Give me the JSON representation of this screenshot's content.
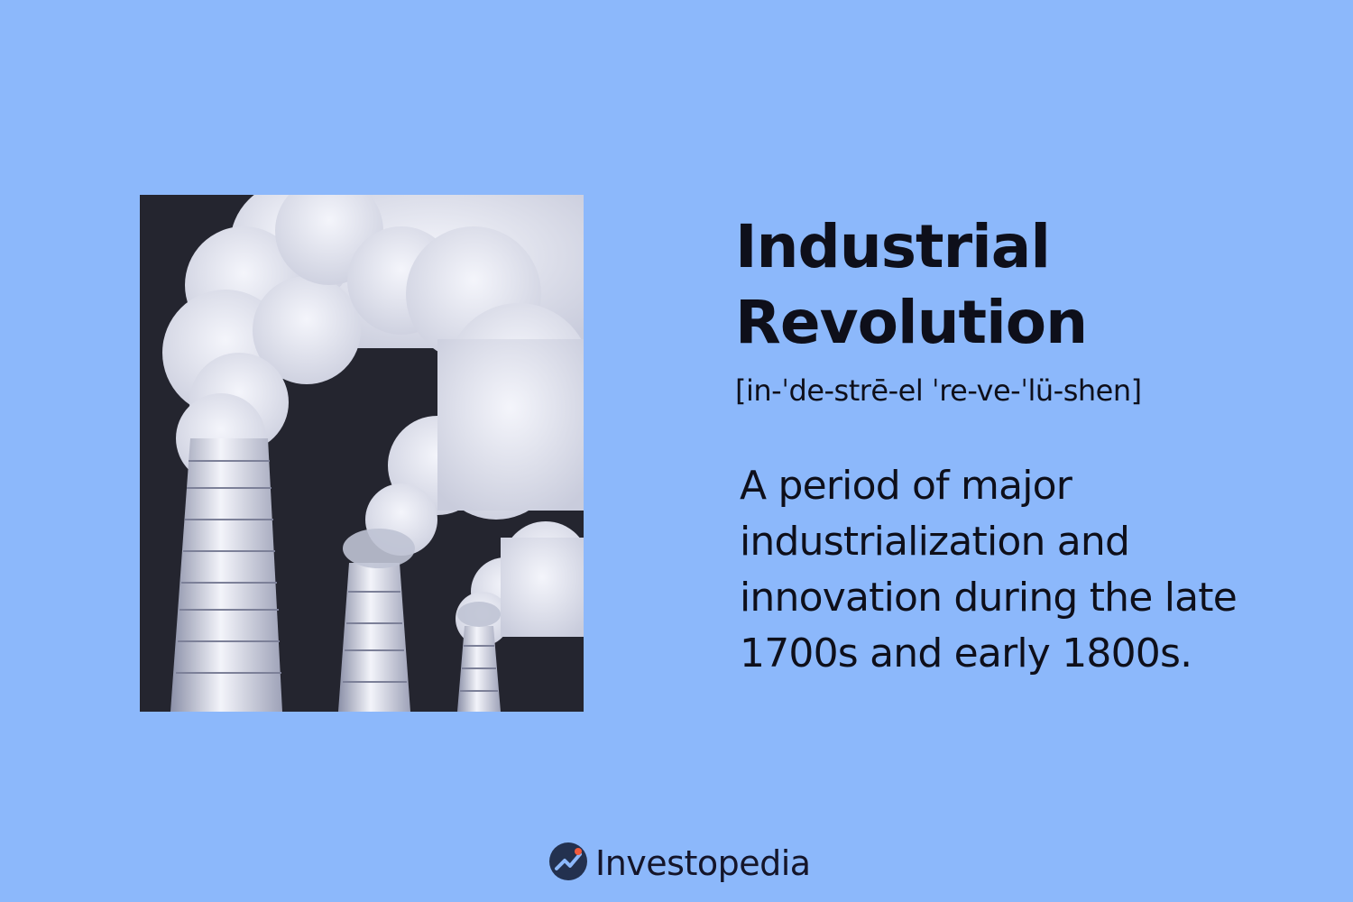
{
  "term": {
    "line1": "Industrial",
    "line2": "Revolution",
    "pronunciation": "[in-ˈde-strē-el ˈre-ve-ˈlü-shen]"
  },
  "definition": {
    "lines": [
      "A period of major",
      "industrialization and",
      "innovation during the late",
      "1700s and early 1800s."
    ]
  },
  "brand": {
    "name": "Investopedia",
    "logo_icon": "investopedia-logo-icon"
  },
  "illustration": {
    "subject": "factory-smokestacks-illustration"
  },
  "colors": {
    "background": "#8cb8fb",
    "text": "#0e0f1a",
    "illustration_dark": "#24252f",
    "smoke": "#e6e8f2",
    "logo_accent": "#f05a3c"
  }
}
